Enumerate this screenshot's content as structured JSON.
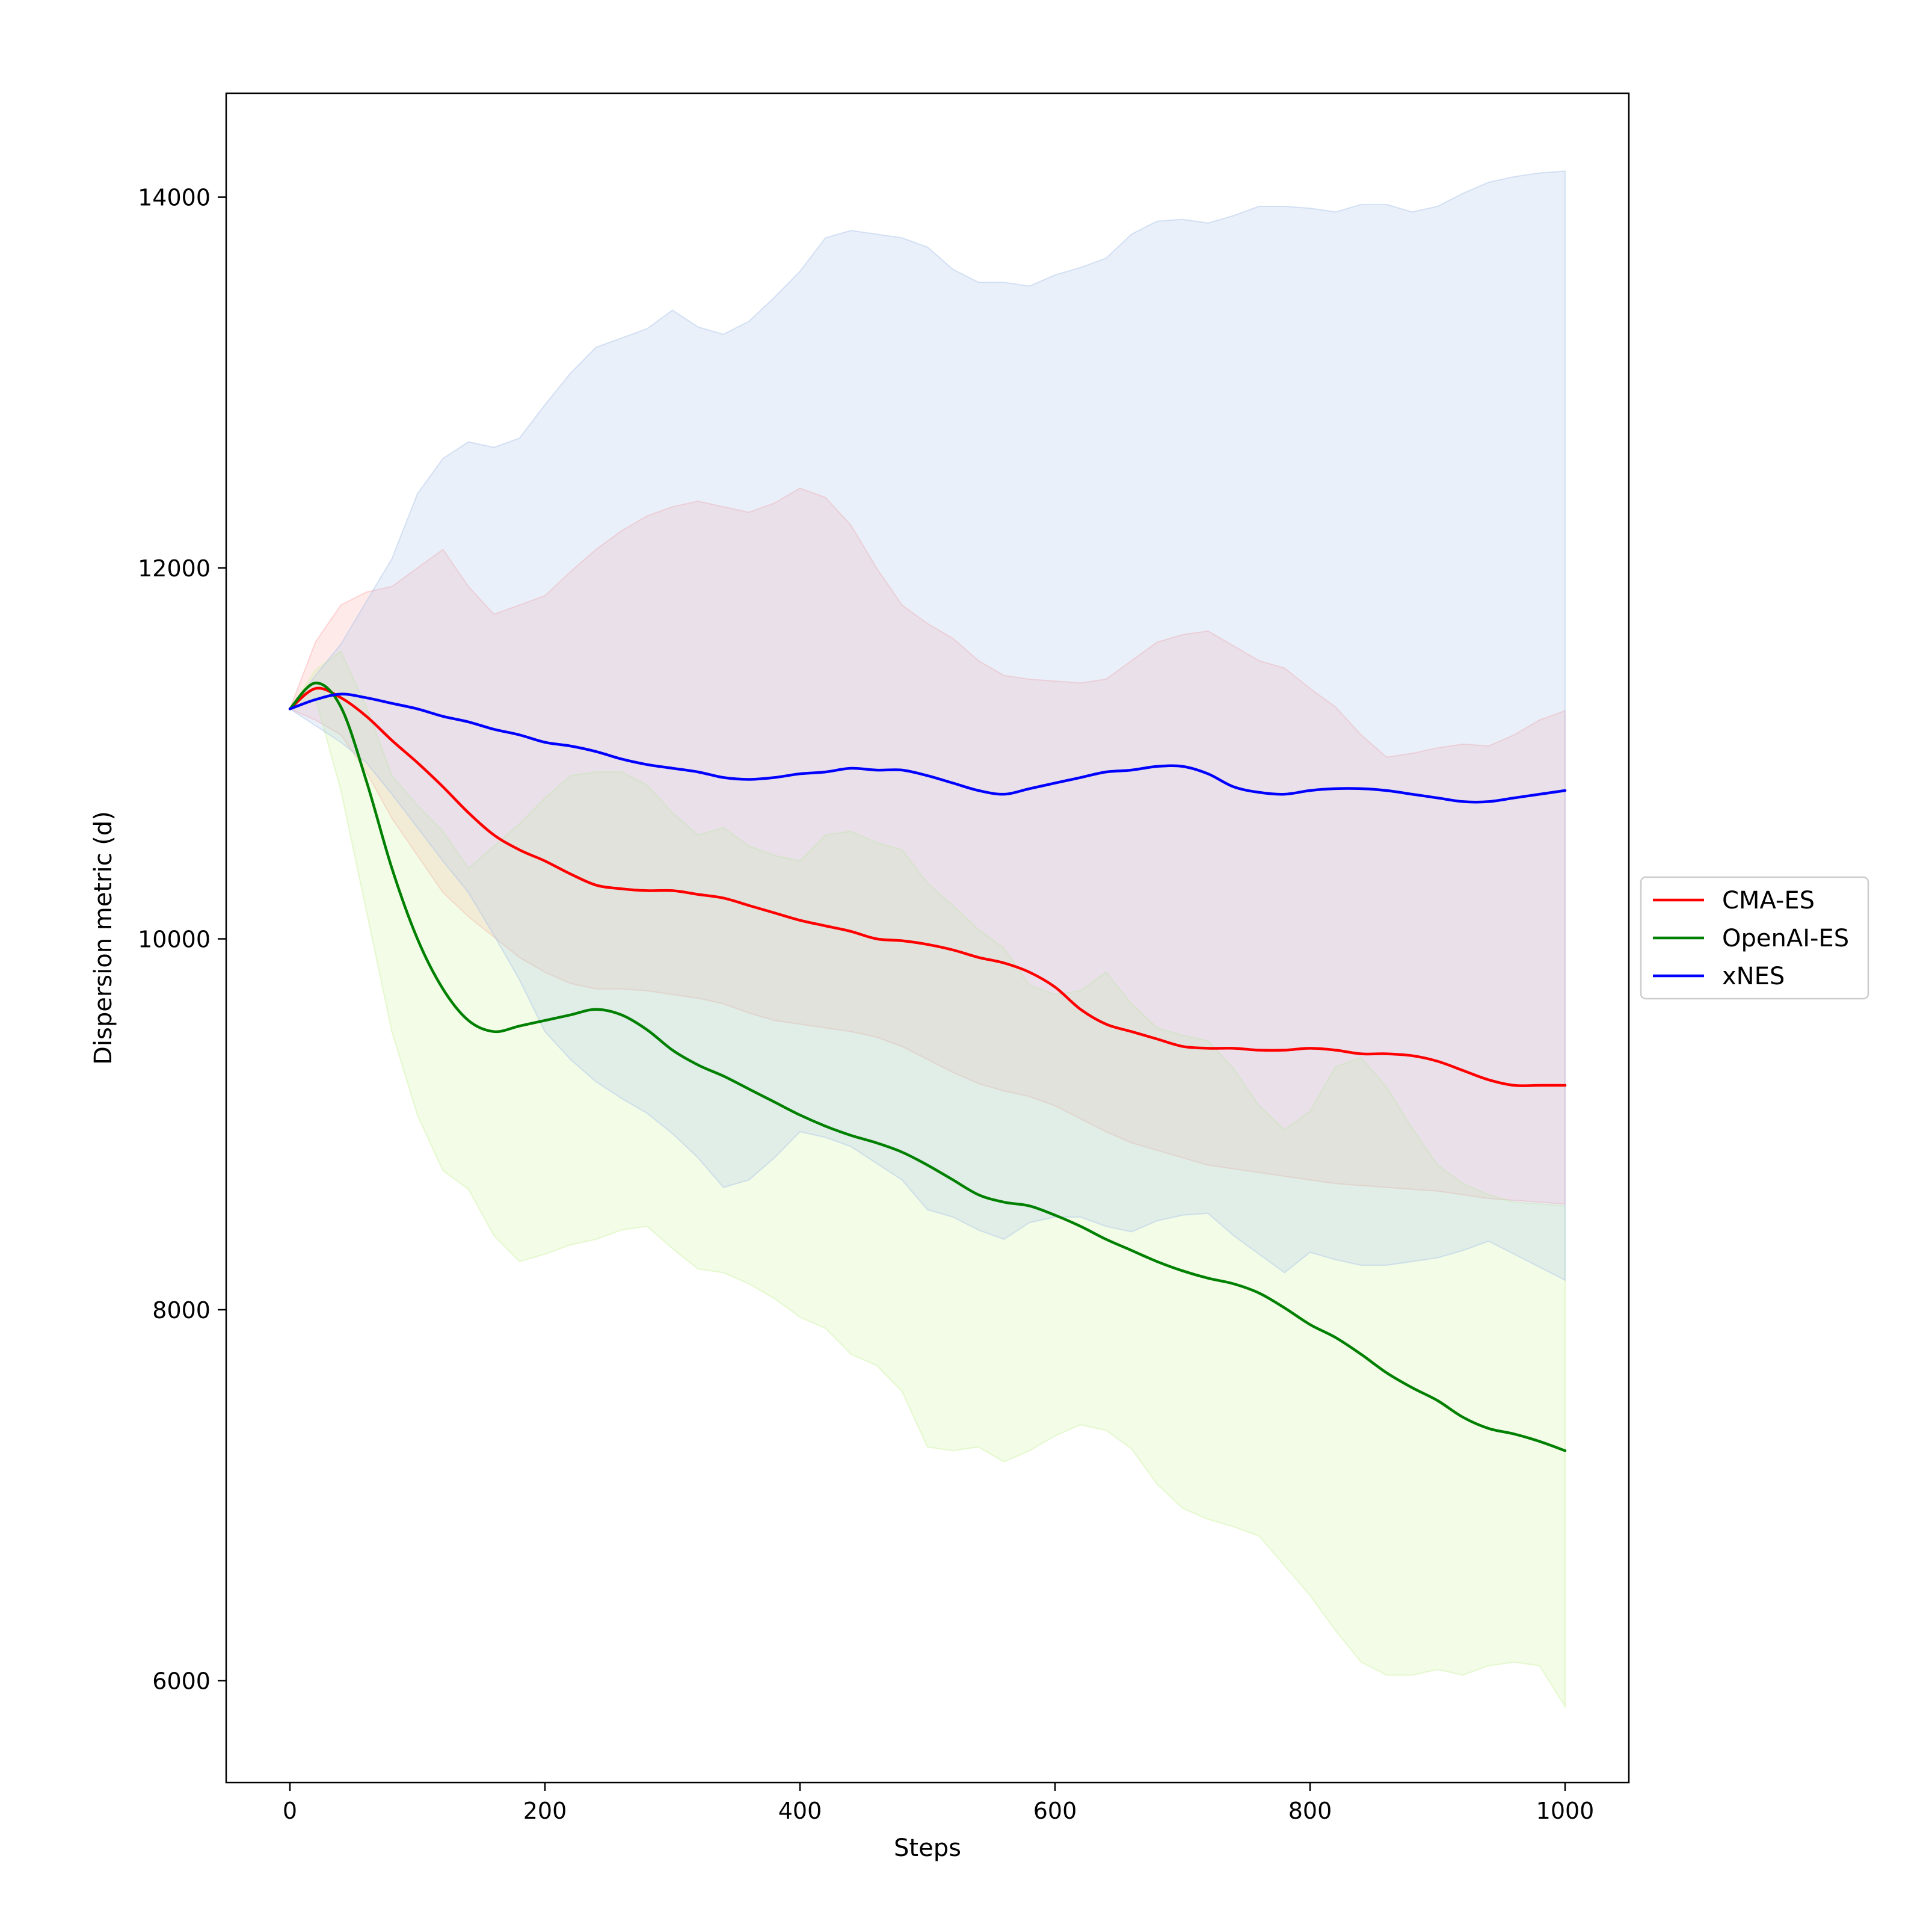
{
  "chart_data": {
    "type": "line",
    "title": "",
    "xlabel": "Steps",
    "ylabel": "Dispersion metric (d)",
    "xlim": [
      -50,
      1050
    ],
    "ylim": [
      5450,
      14560
    ],
    "xticks": [
      0,
      200,
      400,
      600,
      800,
      1000
    ],
    "yticks": [
      6000,
      8000,
      10000,
      12000,
      14000
    ],
    "xtick_labels": [
      "0",
      "200",
      "400",
      "600",
      "800",
      "1000"
    ],
    "ytick_labels": [
      "6000",
      "8000",
      "10000",
      "12000",
      "14000"
    ],
    "grid": false,
    "legend_position": "right-outside",
    "x": [
      0,
      20,
      40,
      60,
      80,
      100,
      120,
      140,
      160,
      180,
      200,
      220,
      240,
      260,
      280,
      300,
      320,
      340,
      360,
      380,
      400,
      420,
      440,
      460,
      480,
      500,
      520,
      540,
      560,
      580,
      600,
      620,
      640,
      660,
      680,
      700,
      720,
      740,
      760,
      780,
      800,
      820,
      840,
      860,
      880,
      900,
      920,
      940,
      960,
      980,
      1000
    ],
    "series": [
      {
        "name": "CMA-ES",
        "color": "#ff0000",
        "band_color": "#ffaaaa",
        "mean": [
          11240,
          11350,
          11300,
          11200,
          11070,
          10950,
          10820,
          10680,
          10560,
          10480,
          10420,
          10350,
          10290,
          10270,
          10260,
          10260,
          10240,
          10220,
          10180,
          10140,
          10100,
          10070,
          10040,
          10000,
          9990,
          9970,
          9940,
          9900,
          9870,
          9820,
          9740,
          9620,
          9540,
          9500,
          9460,
          9420,
          9410,
          9410,
          9400,
          9400,
          9410,
          9400,
          9380,
          9380,
          9370,
          9340,
          9290,
          9240,
          9210,
          9210,
          9210
        ],
        "upper": [
          11240,
          11600,
          11800,
          11870,
          11900,
          12000,
          12100,
          11900,
          11750,
          11800,
          11850,
          11980,
          12100,
          12200,
          12280,
          12330,
          12360,
          12330,
          12300,
          12350,
          12430,
          12380,
          12230,
          12000,
          11800,
          11700,
          11620,
          11500,
          11420,
          11400,
          11390,
          11380,
          11400,
          11500,
          11600,
          11640,
          11660,
          11580,
          11500,
          11460,
          11350,
          11250,
          11100,
          10980,
          11000,
          11030,
          11050,
          11040,
          11100,
          11180,
          11230
        ],
        "lower": [
          11240,
          11180,
          11100,
          10900,
          10650,
          10450,
          10250,
          10120,
          10010,
          9900,
          9820,
          9760,
          9730,
          9730,
          9720,
          9700,
          9680,
          9650,
          9600,
          9560,
          9540,
          9520,
          9500,
          9470,
          9420,
          9350,
          9280,
          9220,
          9180,
          9150,
          9100,
          9030,
          8960,
          8900,
          8860,
          8820,
          8780,
          8760,
          8740,
          8720,
          8700,
          8680,
          8670,
          8660,
          8650,
          8640,
          8620,
          8600,
          8590,
          8580,
          8570
        ]
      },
      {
        "name": "OpenAI-ES",
        "color": "#008000",
        "band_color": "#ccf2a0",
        "mean": [
          11240,
          11380,
          11250,
          10850,
          10380,
          10000,
          9730,
          9560,
          9500,
          9530,
          9560,
          9590,
          9620,
          9590,
          9510,
          9400,
          9320,
          9260,
          9190,
          9120,
          9050,
          8990,
          8940,
          8900,
          8850,
          8780,
          8700,
          8620,
          8580,
          8560,
          8510,
          8450,
          8380,
          8320,
          8260,
          8210,
          8170,
          8140,
          8090,
          8010,
          7920,
          7850,
          7760,
          7660,
          7580,
          7510,
          7420,
          7360,
          7330,
          7290,
          7240
        ],
        "upper": [
          11240,
          11450,
          11550,
          11250,
          10880,
          10720,
          10580,
          10380,
          10500,
          10620,
          10760,
          10880,
          10900,
          10900,
          10830,
          10680,
          10560,
          10600,
          10500,
          10450,
          10420,
          10560,
          10580,
          10520,
          10480,
          10300,
          10180,
          10050,
          9950,
          9750,
          9700,
          9720,
          9820,
          9650,
          9520,
          9480,
          9450,
          9300,
          9100,
          8970,
          9070,
          9310,
          9360,
          9200,
          8980,
          8780,
          8680,
          8620,
          8580,
          8570,
          8560
        ],
        "lower": [
          11240,
          11300,
          10800,
          10150,
          9500,
          9050,
          8750,
          8650,
          8400,
          8260,
          8300,
          8350,
          8380,
          8430,
          8450,
          8330,
          8220,
          8200,
          8140,
          8060,
          7960,
          7900,
          7760,
          7700,
          7560,
          7260,
          7240,
          7260,
          7180,
          7240,
          7320,
          7380,
          7350,
          7250,
          7060,
          6930,
          6870,
          6830,
          6780,
          6620,
          6460,
          6270,
          6100,
          6030,
          6030,
          6060,
          6030,
          6080,
          6100,
          6080,
          5860
        ]
      },
      {
        "name": "xNES",
        "color": "#0000ff",
        "band_color": "#aac4e8",
        "mean": [
          11240,
          11290,
          11320,
          11300,
          11270,
          11240,
          11200,
          11170,
          11130,
          11100,
          11060,
          11040,
          11010,
          10970,
          10940,
          10920,
          10900,
          10870,
          10860,
          10870,
          10890,
          10900,
          10920,
          10910,
          10910,
          10880,
          10840,
          10800,
          10780,
          10810,
          10840,
          10870,
          10900,
          10910,
          10930,
          10930,
          10890,
          10820,
          10790,
          10780,
          10800,
          10810,
          10810,
          10800,
          10780,
          10760,
          10740,
          10740,
          10760,
          10780,
          10800
        ],
        "upper": [
          11240,
          11420,
          11590,
          11820,
          12050,
          12400,
          12590,
          12680,
          12650,
          12700,
          12880,
          13050,
          13190,
          13240,
          13290,
          13390,
          13300,
          13260,
          13330,
          13460,
          13600,
          13780,
          13820,
          13800,
          13780,
          13730,
          13610,
          13540,
          13540,
          13520,
          13580,
          13620,
          13670,
          13800,
          13870,
          13880,
          13860,
          13900,
          13950,
          13950,
          13940,
          13920,
          13960,
          13960,
          13920,
          13950,
          14020,
          14080,
          14110,
          14130,
          14140
        ],
        "lower": [
          11240,
          11150,
          11060,
          10950,
          10780,
          10600,
          10420,
          10250,
          10020,
          9780,
          9500,
          9350,
          9230,
          9140,
          9060,
          8950,
          8820,
          8660,
          8700,
          8820,
          8960,
          8930,
          8880,
          8790,
          8700,
          8540,
          8500,
          8430,
          8380,
          8470,
          8500,
          8500,
          8450,
          8420,
          8480,
          8510,
          8520,
          8400,
          8300,
          8200,
          8310,
          8270,
          8240,
          8240,
          8260,
          8280,
          8320,
          8370,
          8300,
          8230,
          8160
        ]
      }
    ]
  }
}
